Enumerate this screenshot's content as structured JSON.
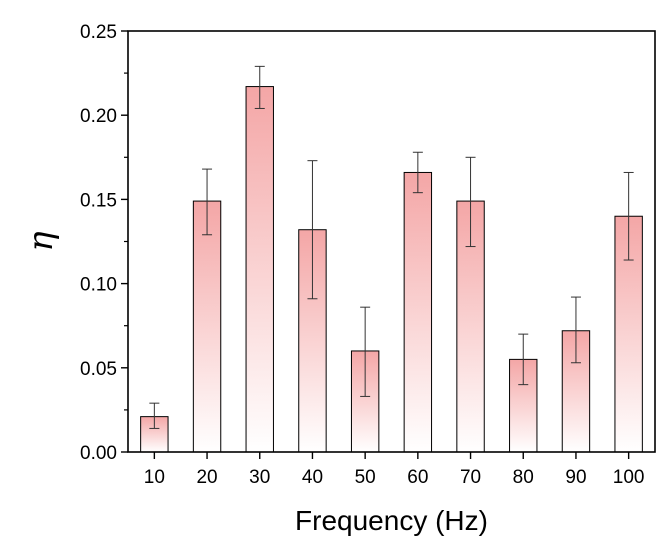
{
  "chart_data": {
    "type": "bar",
    "xlabel": "Frequency (Hz)",
    "ylabel": "η",
    "ylim": [
      0,
      0.25
    ],
    "yticks": [
      "0.00",
      "0.05",
      "0.10",
      "0.15",
      "0.20",
      "0.25"
    ],
    "categories": [
      "10",
      "20",
      "30",
      "40",
      "50",
      "60",
      "70",
      "80",
      "90",
      "100"
    ],
    "values": [
      0.021,
      0.149,
      0.217,
      0.132,
      0.06,
      0.166,
      0.149,
      0.055,
      0.072,
      0.14
    ],
    "error_upper": [
      0.029,
      0.168,
      0.229,
      0.173,
      0.086,
      0.178,
      0.175,
      0.07,
      0.092,
      0.166
    ],
    "error_lower": [
      0.014,
      0.129,
      0.204,
      0.091,
      0.033,
      0.154,
      0.122,
      0.04,
      0.053,
      0.114
    ],
    "grid": false,
    "legend": "none",
    "colors": {
      "bar_top": "#f4a6a6",
      "bar_bottom": "#ffffff",
      "bar_edge": "#000000",
      "error_bar": "#333333",
      "axis": "#000000"
    }
  }
}
